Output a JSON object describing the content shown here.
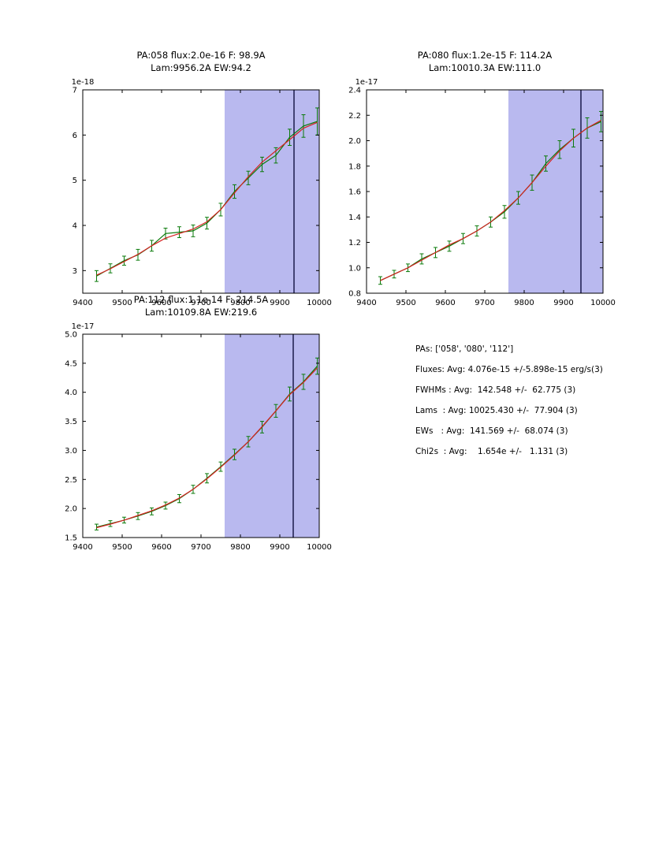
{
  "colors": {
    "green": "#0a7a0a",
    "red": "#d62222",
    "shade": "#b9b9ef",
    "marker_line": "#101040",
    "axis": "#000000"
  },
  "stats_panel": {
    "lines": [
      "PAs: ['058', '080', '112']",
      "Fluxes: Avg: 4.076e-15 +/-5.898e-15 erg/s(3)",
      "FWHMs : Avg:  142.548 +/-  62.775 (3)",
      "Lams  : Avg: 10025.430 +/-  77.904 (3)",
      "EWs   : Avg:  141.569 +/-  68.074 (3)",
      "Chi2s  : Avg:    1.654e +/-   1.131 (3)"
    ]
  },
  "chart_data": [
    {
      "type": "line",
      "title_line1": "PA:058 flux:2.0e-16 F: 98.9A",
      "title_line2": "Lam:9956.2A EW:94.2",
      "offset_label": "1e-18",
      "xlim": [
        9400,
        10000
      ],
      "ylim": [
        2.5,
        7.0
      ],
      "xticks": [
        9400,
        9500,
        9600,
        9700,
        9800,
        9900,
        10000
      ],
      "xtick_labels": [
        "9400",
        "9500",
        "9600",
        "9700",
        "9800",
        "9900",
        "10000"
      ],
      "yticks": [
        3,
        4,
        5,
        6,
        7
      ],
      "ytick_labels": [
        "3",
        "4",
        "5",
        "6",
        "7"
      ],
      "shade_region": [
        9760,
        10000
      ],
      "marker_line_x": 9936,
      "x": [
        9435,
        9470,
        9505,
        9540,
        9575,
        9610,
        9645,
        9680,
        9715,
        9750,
        9785,
        9820,
        9855,
        9890,
        9925,
        9960,
        9995
      ],
      "series": [
        {
          "name": "spectrum",
          "color": "green",
          "values": [
            2.88,
            3.05,
            3.22,
            3.35,
            3.55,
            3.82,
            3.85,
            3.88,
            4.05,
            4.35,
            4.75,
            5.05,
            5.35,
            5.55,
            5.95,
            6.2,
            6.3
          ],
          "errors": [
            0.12,
            0.1,
            0.1,
            0.12,
            0.12,
            0.12,
            0.12,
            0.13,
            0.13,
            0.14,
            0.15,
            0.15,
            0.16,
            0.17,
            0.18,
            0.25,
            0.3
          ]
        },
        {
          "name": "fit",
          "color": "red",
          "values": [
            2.9,
            3.04,
            3.2,
            3.36,
            3.55,
            3.72,
            3.82,
            3.92,
            4.08,
            4.35,
            4.72,
            5.08,
            5.4,
            5.65,
            5.9,
            6.15,
            6.28
          ]
        }
      ]
    },
    {
      "type": "line",
      "title_line1": "PA:080 flux:1.2e-15 F: 114.2A",
      "title_line2": "Lam:10010.3A EW:111.0",
      "offset_label": "1e-17",
      "xlim": [
        9400,
        10000
      ],
      "ylim": [
        0.8,
        2.4
      ],
      "xticks": [
        9400,
        9500,
        9600,
        9700,
        9800,
        9900,
        10000
      ],
      "xtick_labels": [
        "9400",
        "9500",
        "9600",
        "9700",
        "9800",
        "9900",
        "10000"
      ],
      "yticks": [
        0.8,
        1.0,
        1.2,
        1.4,
        1.6,
        1.8,
        2.0,
        2.2,
        2.4
      ],
      "ytick_labels": [
        "0.8",
        "1.0",
        "1.2",
        "1.4",
        "1.6",
        "1.8",
        "2.0",
        "2.2",
        "2.4"
      ],
      "shade_region": [
        9760,
        10000
      ],
      "marker_line_x": 9944,
      "x": [
        9435,
        9470,
        9505,
        9540,
        9575,
        9610,
        9645,
        9680,
        9715,
        9750,
        9785,
        9820,
        9855,
        9890,
        9925,
        9960,
        9995
      ],
      "series": [
        {
          "name": "spectrum",
          "color": "green",
          "values": [
            0.9,
            0.95,
            1.0,
            1.07,
            1.12,
            1.17,
            1.23,
            1.29,
            1.36,
            1.44,
            1.55,
            1.67,
            1.82,
            1.93,
            2.02,
            2.1,
            2.15
          ],
          "errors": [
            0.03,
            0.03,
            0.03,
            0.04,
            0.04,
            0.04,
            0.04,
            0.04,
            0.04,
            0.05,
            0.05,
            0.06,
            0.06,
            0.07,
            0.07,
            0.08,
            0.08
          ]
        },
        {
          "name": "fit",
          "color": "red",
          "values": [
            0.9,
            0.95,
            1.0,
            1.06,
            1.12,
            1.18,
            1.23,
            1.29,
            1.36,
            1.45,
            1.55,
            1.67,
            1.8,
            1.92,
            2.02,
            2.1,
            2.16
          ]
        }
      ]
    },
    {
      "type": "line",
      "title_line1": "PA:112 flux:1.1e-14 F: 214.5A",
      "title_line2": "Lam:10109.8A EW:219.6",
      "offset_label": "1e-17",
      "xlim": [
        9400,
        10000
      ],
      "ylim": [
        1.5,
        5.0
      ],
      "xticks": [
        9400,
        9500,
        9600,
        9700,
        9800,
        9900,
        10000
      ],
      "xtick_labels": [
        "9400",
        "9500",
        "9600",
        "9700",
        "9800",
        "9900",
        "10000"
      ],
      "yticks": [
        1.5,
        2.0,
        2.5,
        3.0,
        3.5,
        4.0,
        4.5,
        5.0
      ],
      "ytick_labels": [
        "1.5",
        "2.0",
        "2.5",
        "3.0",
        "3.5",
        "4.0",
        "4.5",
        "5.0"
      ],
      "shade_region": [
        9760,
        10000
      ],
      "marker_line_x": 9934,
      "x": [
        9435,
        9470,
        9505,
        9540,
        9575,
        9610,
        9645,
        9680,
        9715,
        9750,
        9785,
        9820,
        9855,
        9890,
        9925,
        9960,
        9995
      ],
      "series": [
        {
          "name": "spectrum",
          "color": "green",
          "values": [
            1.68,
            1.74,
            1.8,
            1.87,
            1.95,
            2.05,
            2.17,
            2.33,
            2.52,
            2.72,
            2.93,
            3.15,
            3.4,
            3.68,
            3.97,
            4.18,
            4.45
          ],
          "errors": [
            0.05,
            0.05,
            0.05,
            0.06,
            0.06,
            0.06,
            0.07,
            0.07,
            0.08,
            0.08,
            0.09,
            0.09,
            0.1,
            0.11,
            0.12,
            0.13,
            0.14
          ]
        },
        {
          "name": "fit",
          "color": "red",
          "values": [
            1.67,
            1.73,
            1.8,
            1.88,
            1.96,
            2.06,
            2.18,
            2.33,
            2.51,
            2.71,
            2.92,
            3.15,
            3.41,
            3.68,
            3.96,
            4.17,
            4.42
          ]
        }
      ]
    }
  ]
}
